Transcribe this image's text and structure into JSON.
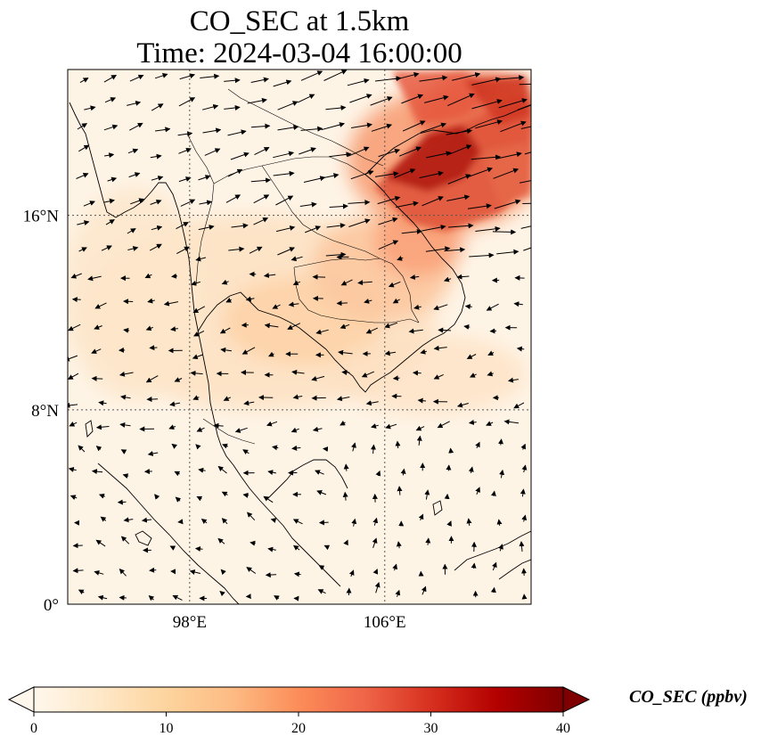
{
  "title": {
    "line1": "CO_SEC at 1.5km",
    "line2": "Time: 2024-03-04 16:00:00"
  },
  "map": {
    "lon_range": [
      93,
      112
    ],
    "lat_range": [
      0,
      22
    ],
    "lat_ticks": [
      {
        "value": 0,
        "label": "0°"
      },
      {
        "value": 8,
        "label": "8°N"
      },
      {
        "value": 16,
        "label": "16°N"
      }
    ],
    "lon_ticks": [
      {
        "value": 98,
        "label": "98°E"
      },
      {
        "value": 106,
        "label": "106°E"
      }
    ],
    "gridlines": "dotted"
  },
  "colorbar": {
    "label": "CO_SEC (ppbv)",
    "colormap": "OrRd",
    "min": 0,
    "max": 40,
    "extend": "both",
    "ticks": [
      {
        "value": 0,
        "label": "0"
      },
      {
        "value": 10,
        "label": "10"
      },
      {
        "value": 20,
        "label": "20"
      },
      {
        "value": 30,
        "label": "30"
      },
      {
        "value": 40,
        "label": "40"
      }
    ],
    "colors": [
      "#fff7ec",
      "#fee8c8",
      "#fdd49e",
      "#fdbb84",
      "#fc8d59",
      "#ef6548",
      "#d7301f",
      "#b30000",
      "#7f0000"
    ]
  }
}
